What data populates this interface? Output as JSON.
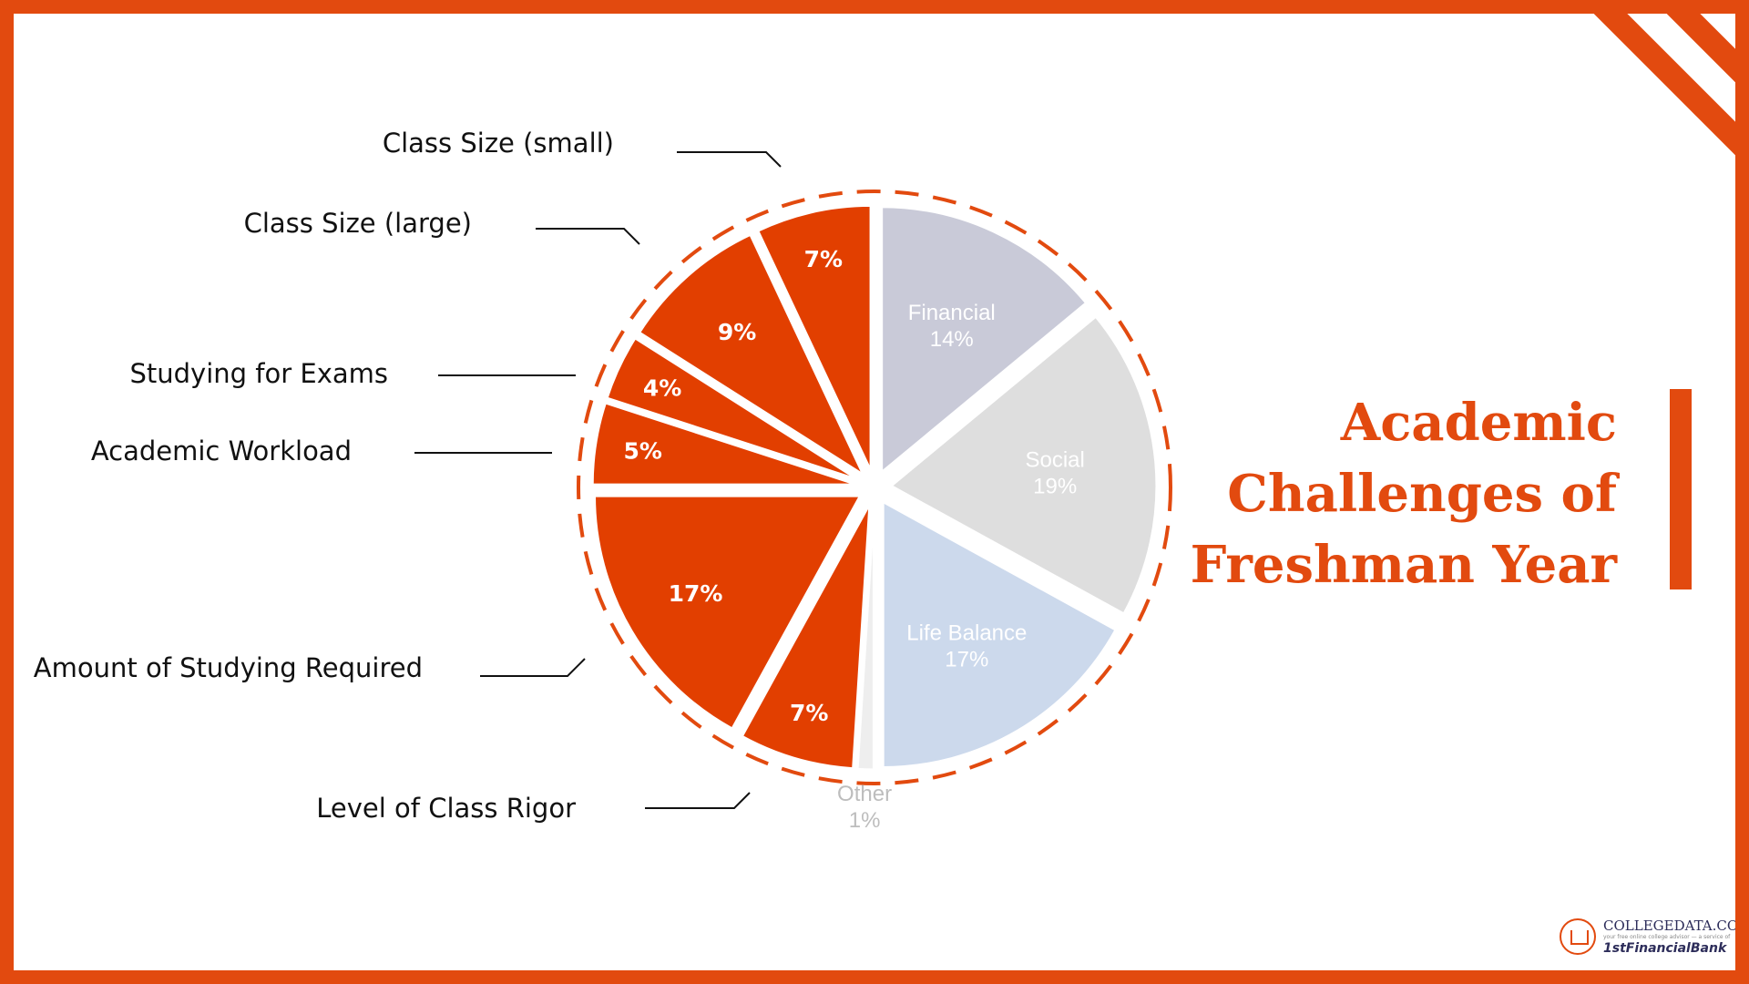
{
  "title_lines": [
    "Academic",
    "Challenges of",
    "Freshman Year"
  ],
  "colors": {
    "accent": "#E24A0F",
    "financial": "#C9CAD8",
    "social": "#DEDEDE",
    "life_balance": "#CCD9EC",
    "other": "#EEEEEE",
    "academic": "#E23F00"
  },
  "chart_data": {
    "type": "pie",
    "exploded": true,
    "slices": [
      {
        "label": "Financial",
        "value": 14,
        "display": "14%",
        "color": "#C9CAD8",
        "show_label": true
      },
      {
        "label": "Social",
        "value": 19,
        "display": "19%",
        "color": "#DEDEDE",
        "show_label": true
      },
      {
        "label": "Life Balance",
        "value": 17,
        "display": "17%",
        "color": "#CCD9EC",
        "show_label": true
      },
      {
        "label": "Other",
        "value": 1,
        "display": "1%",
        "color": "#EEEEEE",
        "show_label": true
      },
      {
        "label": "Level of Class Rigor",
        "value": 7,
        "display": "7%",
        "color": "#E23F00",
        "show_label": false
      },
      {
        "label": "Amount of Studying Required",
        "value": 17,
        "display": "17%",
        "color": "#E23F00",
        "show_label": false
      },
      {
        "label": "Academic Workload",
        "value": 5,
        "display": "5%",
        "color": "#E23F00",
        "show_label": false
      },
      {
        "label": "Studying for Exams",
        "value": 4,
        "display": "4%",
        "color": "#E23F00",
        "show_label": false
      },
      {
        "label": "Class Size (large)",
        "value": 9,
        "display": "9%",
        "color": "#E23F00",
        "show_label": false
      },
      {
        "label": "Class Size (small)",
        "value": 7,
        "display": "7%",
        "color": "#E23F00",
        "show_label": false
      }
    ],
    "callouts": [
      "Class Size (small)",
      "Class Size (large)",
      "Studying for Exams",
      "Academic Workload",
      "Amount of Studying Required",
      "Level of Class Rigor"
    ],
    "highlighted_group": "academic"
  },
  "logo": {
    "line1": "COLLEGEDATA.COM",
    "line2": "your free online college advisor — a service of",
    "line3": "1stFinancialBank"
  }
}
